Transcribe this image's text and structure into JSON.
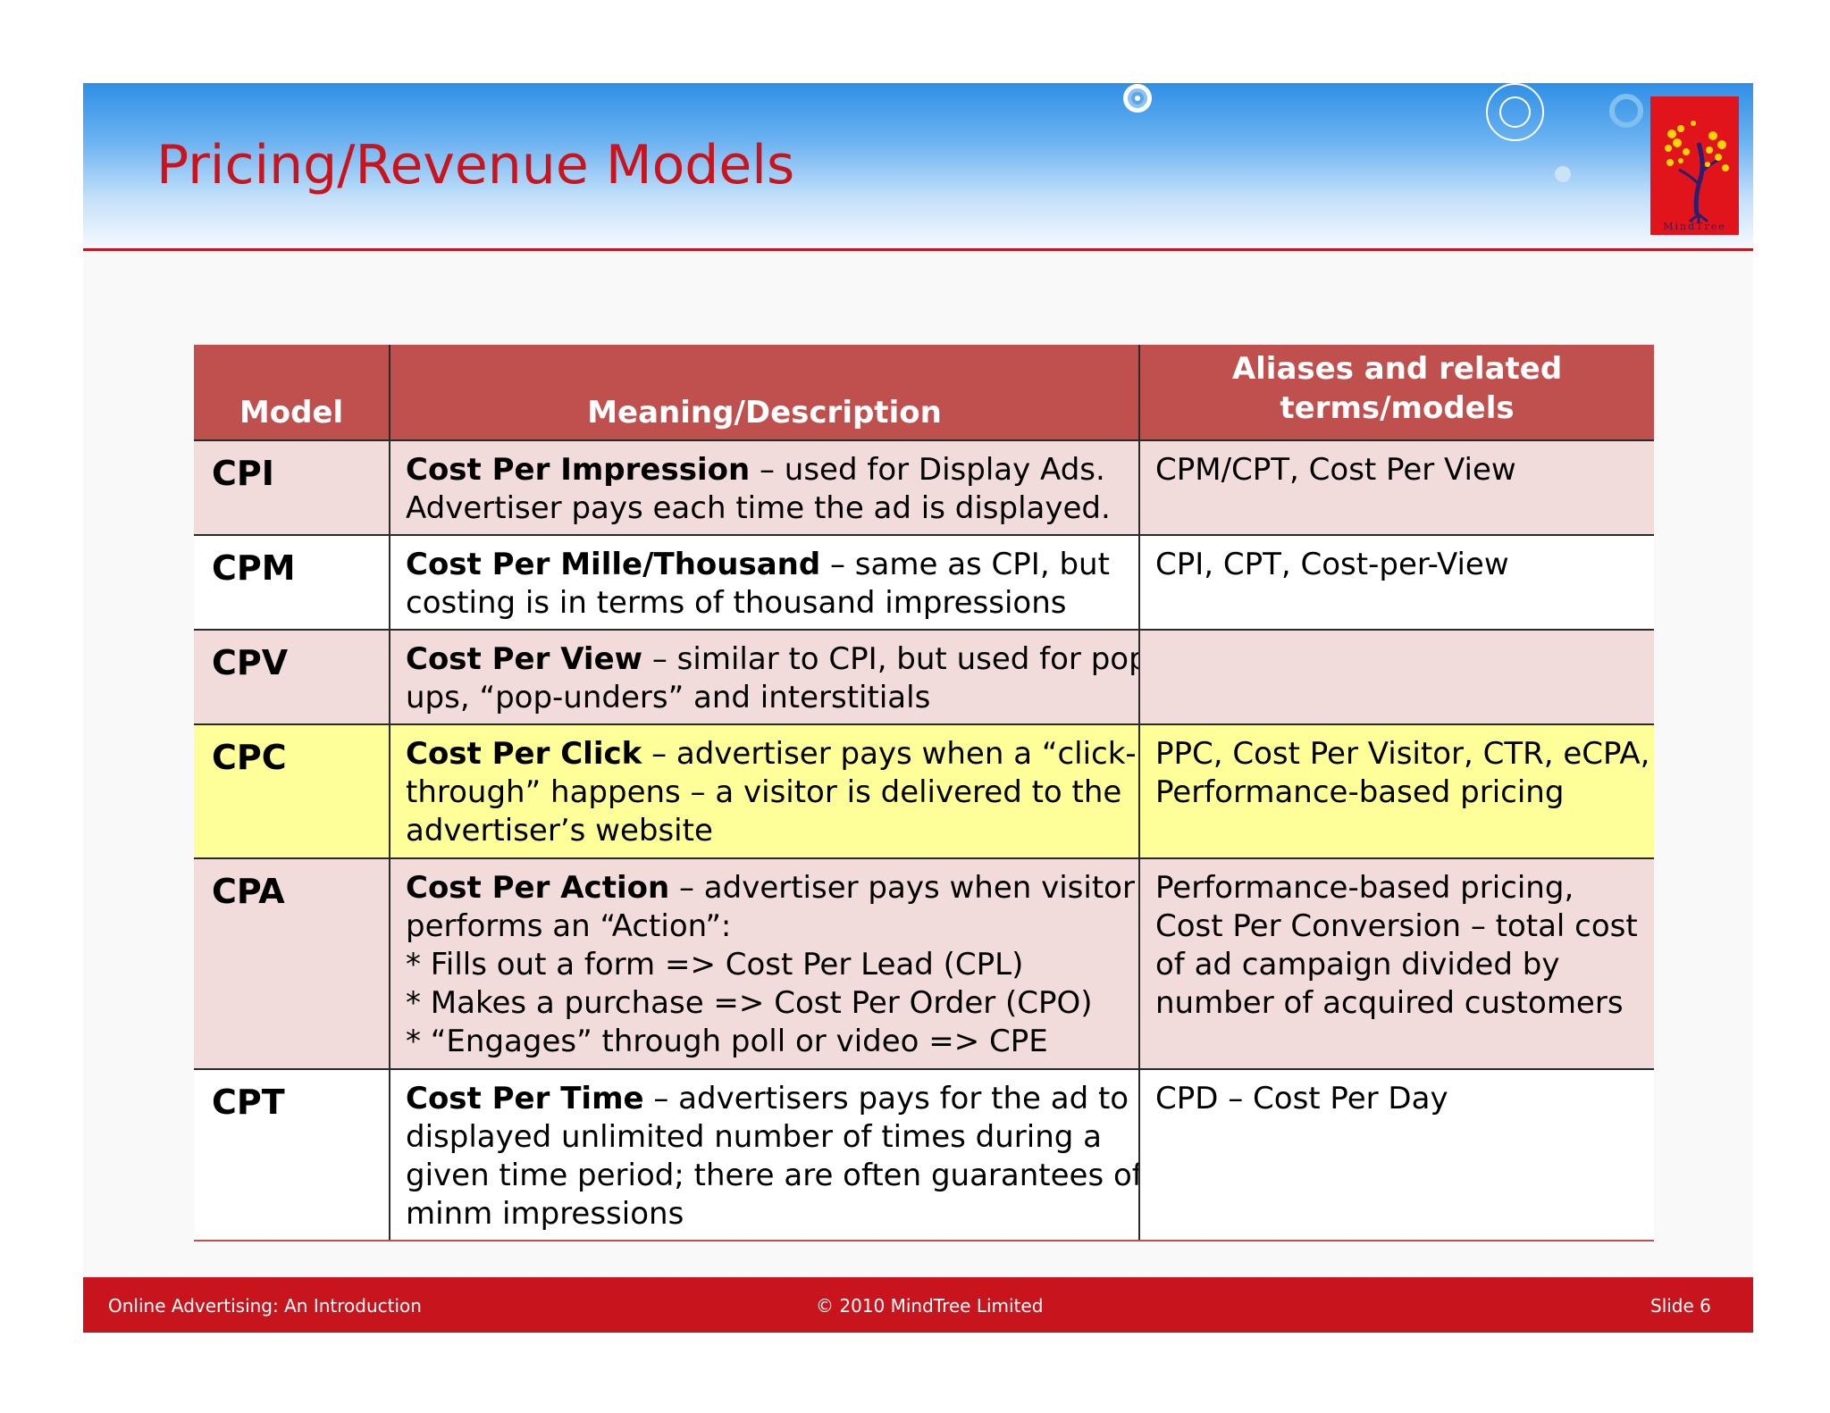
{
  "slide": {
    "title": "Pricing/Revenue Models",
    "logo_text": "MindTree"
  },
  "table": {
    "headers": {
      "model": "Model",
      "description": "Meaning/Description",
      "aliases_line1": "Aliases and related",
      "aliases_line2": "terms/models"
    },
    "rows": [
      {
        "model": "CPI",
        "desc_lead": "Cost Per Impression",
        "desc_lines": [
          "– used for Display Ads.",
          "Advertiser pays each time the ad is displayed."
        ],
        "alias_lines": [
          "CPM/CPT, Cost Per View"
        ]
      },
      {
        "model": "CPM",
        "desc_lead": "Cost Per Mille/Thousand",
        "desc_lines": [
          "– same as CPI, but",
          "costing is in terms of thousand impressions"
        ],
        "alias_lines": [
          "CPI, CPT, Cost-per-View"
        ]
      },
      {
        "model": "CPV",
        "desc_lead": "Cost Per View",
        "desc_lines": [
          "– similar to CPI, but used for pop-",
          "ups, “pop-unders” and interstitials"
        ],
        "alias_lines": []
      },
      {
        "model": "CPC",
        "desc_lead": "Cost Per Click",
        "desc_lines": [
          "– advertiser pays when a “click-",
          "through” happens – a visitor is delivered to the",
          "advertiser’s website"
        ],
        "alias_lines": [
          "PPC, Cost Per Visitor, CTR, eCPA,",
          "Performance-based pricing"
        ]
      },
      {
        "model": "CPA",
        "desc_lead": "Cost Per Action",
        "desc_lines": [
          "– advertiser pays when visitor",
          "performs an “Action”:",
          "* Fills out a form => Cost Per Lead (CPL)",
          "* Makes a purchase => Cost Per Order (CPO)",
          "* “Engages” through poll or video => CPE"
        ],
        "alias_lines": [
          "Performance-based pricing,",
          "Cost Per Conversion – total cost",
          "of ad campaign divided by",
          "number of acquired customers"
        ]
      },
      {
        "model": "CPT",
        "desc_lead": "Cost Per Time",
        "desc_lines": [
          "– advertisers pays for the ad to be",
          "displayed unlimited number of times during a",
          "given time period; there are often guarantees of",
          "minm impressions"
        ],
        "alias_lines": [
          "CPD – Cost Per Day"
        ]
      }
    ]
  },
  "footer": {
    "left": "Online Advertising: An Introduction",
    "center": "© 2010 MindTree Limited",
    "right": "Slide 6"
  },
  "colors": {
    "brand_red": "#c8141c",
    "header_fill": "#c0504d",
    "row_pink": "#f2dcdb",
    "row_highlight": "#ffff99"
  }
}
